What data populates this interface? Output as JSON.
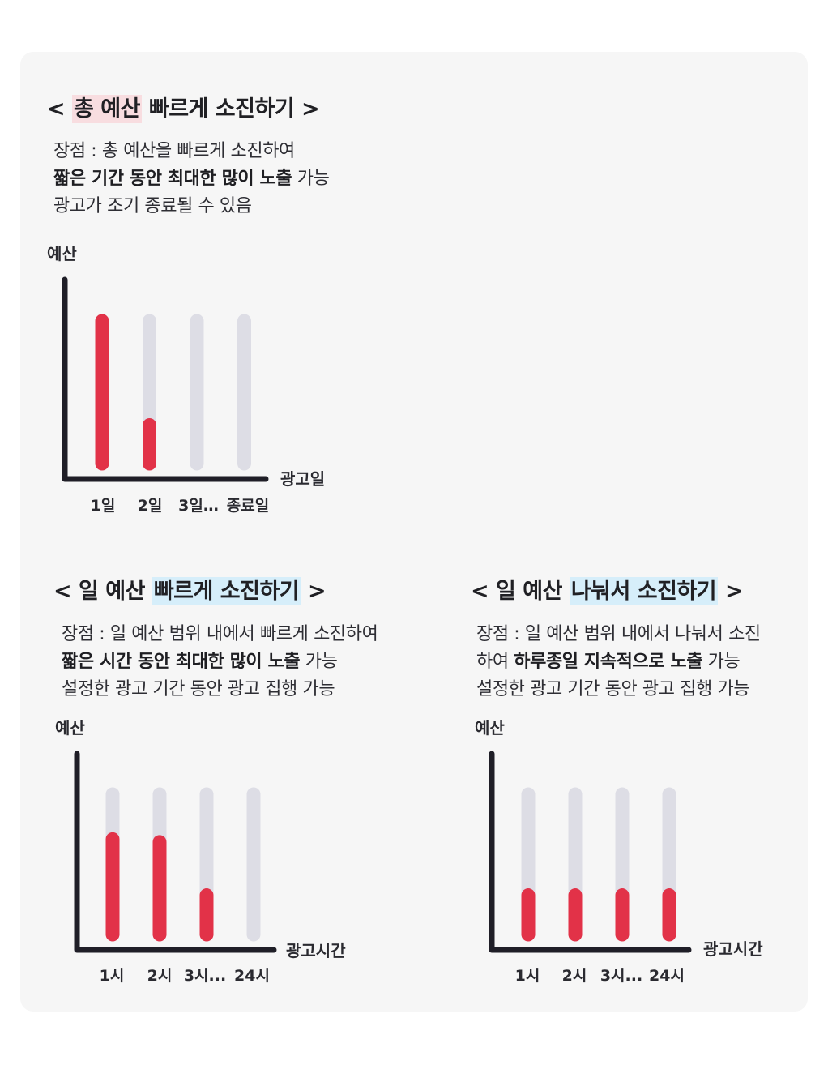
{
  "colors": {
    "accent": "#e23248",
    "track": "#dddde5",
    "axis": "#1f1e27",
    "pink_highlight": "#f8dde0",
    "blue_highlight": "#d6eefa"
  },
  "sections": [
    {
      "title_pre": "< ",
      "title_hl": "총 예산",
      "title_post": " 빠르게 소진하기 >",
      "highlight_color": "#f8dde0",
      "desc": {
        "line1": "장점 : 총 예산을 빠르게 소진하여",
        "line2_bold": "짧은 기간 동안 최대한 많이 노출",
        "line2_rest": " 가능",
        "line3": "광고가 조기 종료될 수 있음"
      }
    },
    {
      "title_pre": "< 일 예산 ",
      "title_hl": "빠르게 소진하기",
      "title_post": " >",
      "highlight_color": "#d6eefa",
      "desc": {
        "line1": "장점 : 일 예산 범위 내에서 빠르게 소진하여",
        "line2_bold": "짧은 시간 동안 최대한 많이 노출",
        "line2_rest": " 가능",
        "line3": "설정한 광고 기간 동안 광고 집행 가능"
      }
    },
    {
      "title_pre": "< 일 예산 ",
      "title_hl": "나눠서 소진하기",
      "title_post": " >",
      "highlight_color": "#d6eefa",
      "desc": {
        "line1": "장점 : 일 예산 범위 내에서 나눠서 소진",
        "line2_pre": "하여 ",
        "line2_bold": "하루종일 지속적으로 노출",
        "line2_rest": " 가능",
        "line3": "설정한 광고 기간 동안 광고 집행 가능"
      }
    }
  ],
  "chart_data": [
    {
      "type": "bar",
      "ylabel": "예산",
      "xlabel": "광고일",
      "categories": [
        "1일",
        "2일",
        "3일…",
        "종료일"
      ],
      "values": [
        1.0,
        0.27,
        0,
        0
      ],
      "ylim": [
        0,
        1
      ]
    },
    {
      "type": "bar",
      "ylabel": "예산",
      "xlabel": "광고시간",
      "categories": [
        "1시",
        "2시",
        "3시...",
        "24시"
      ],
      "values": [
        0.68,
        0.66,
        0.28,
        0
      ],
      "ylim": [
        0,
        1
      ]
    },
    {
      "type": "bar",
      "ylabel": "예산",
      "xlabel": "광고시간",
      "categories": [
        "1시",
        "2시",
        "3시...",
        "24시"
      ],
      "values": [
        0.28,
        0.28,
        0.28,
        0.28
      ],
      "ylim": [
        0,
        1
      ]
    }
  ]
}
